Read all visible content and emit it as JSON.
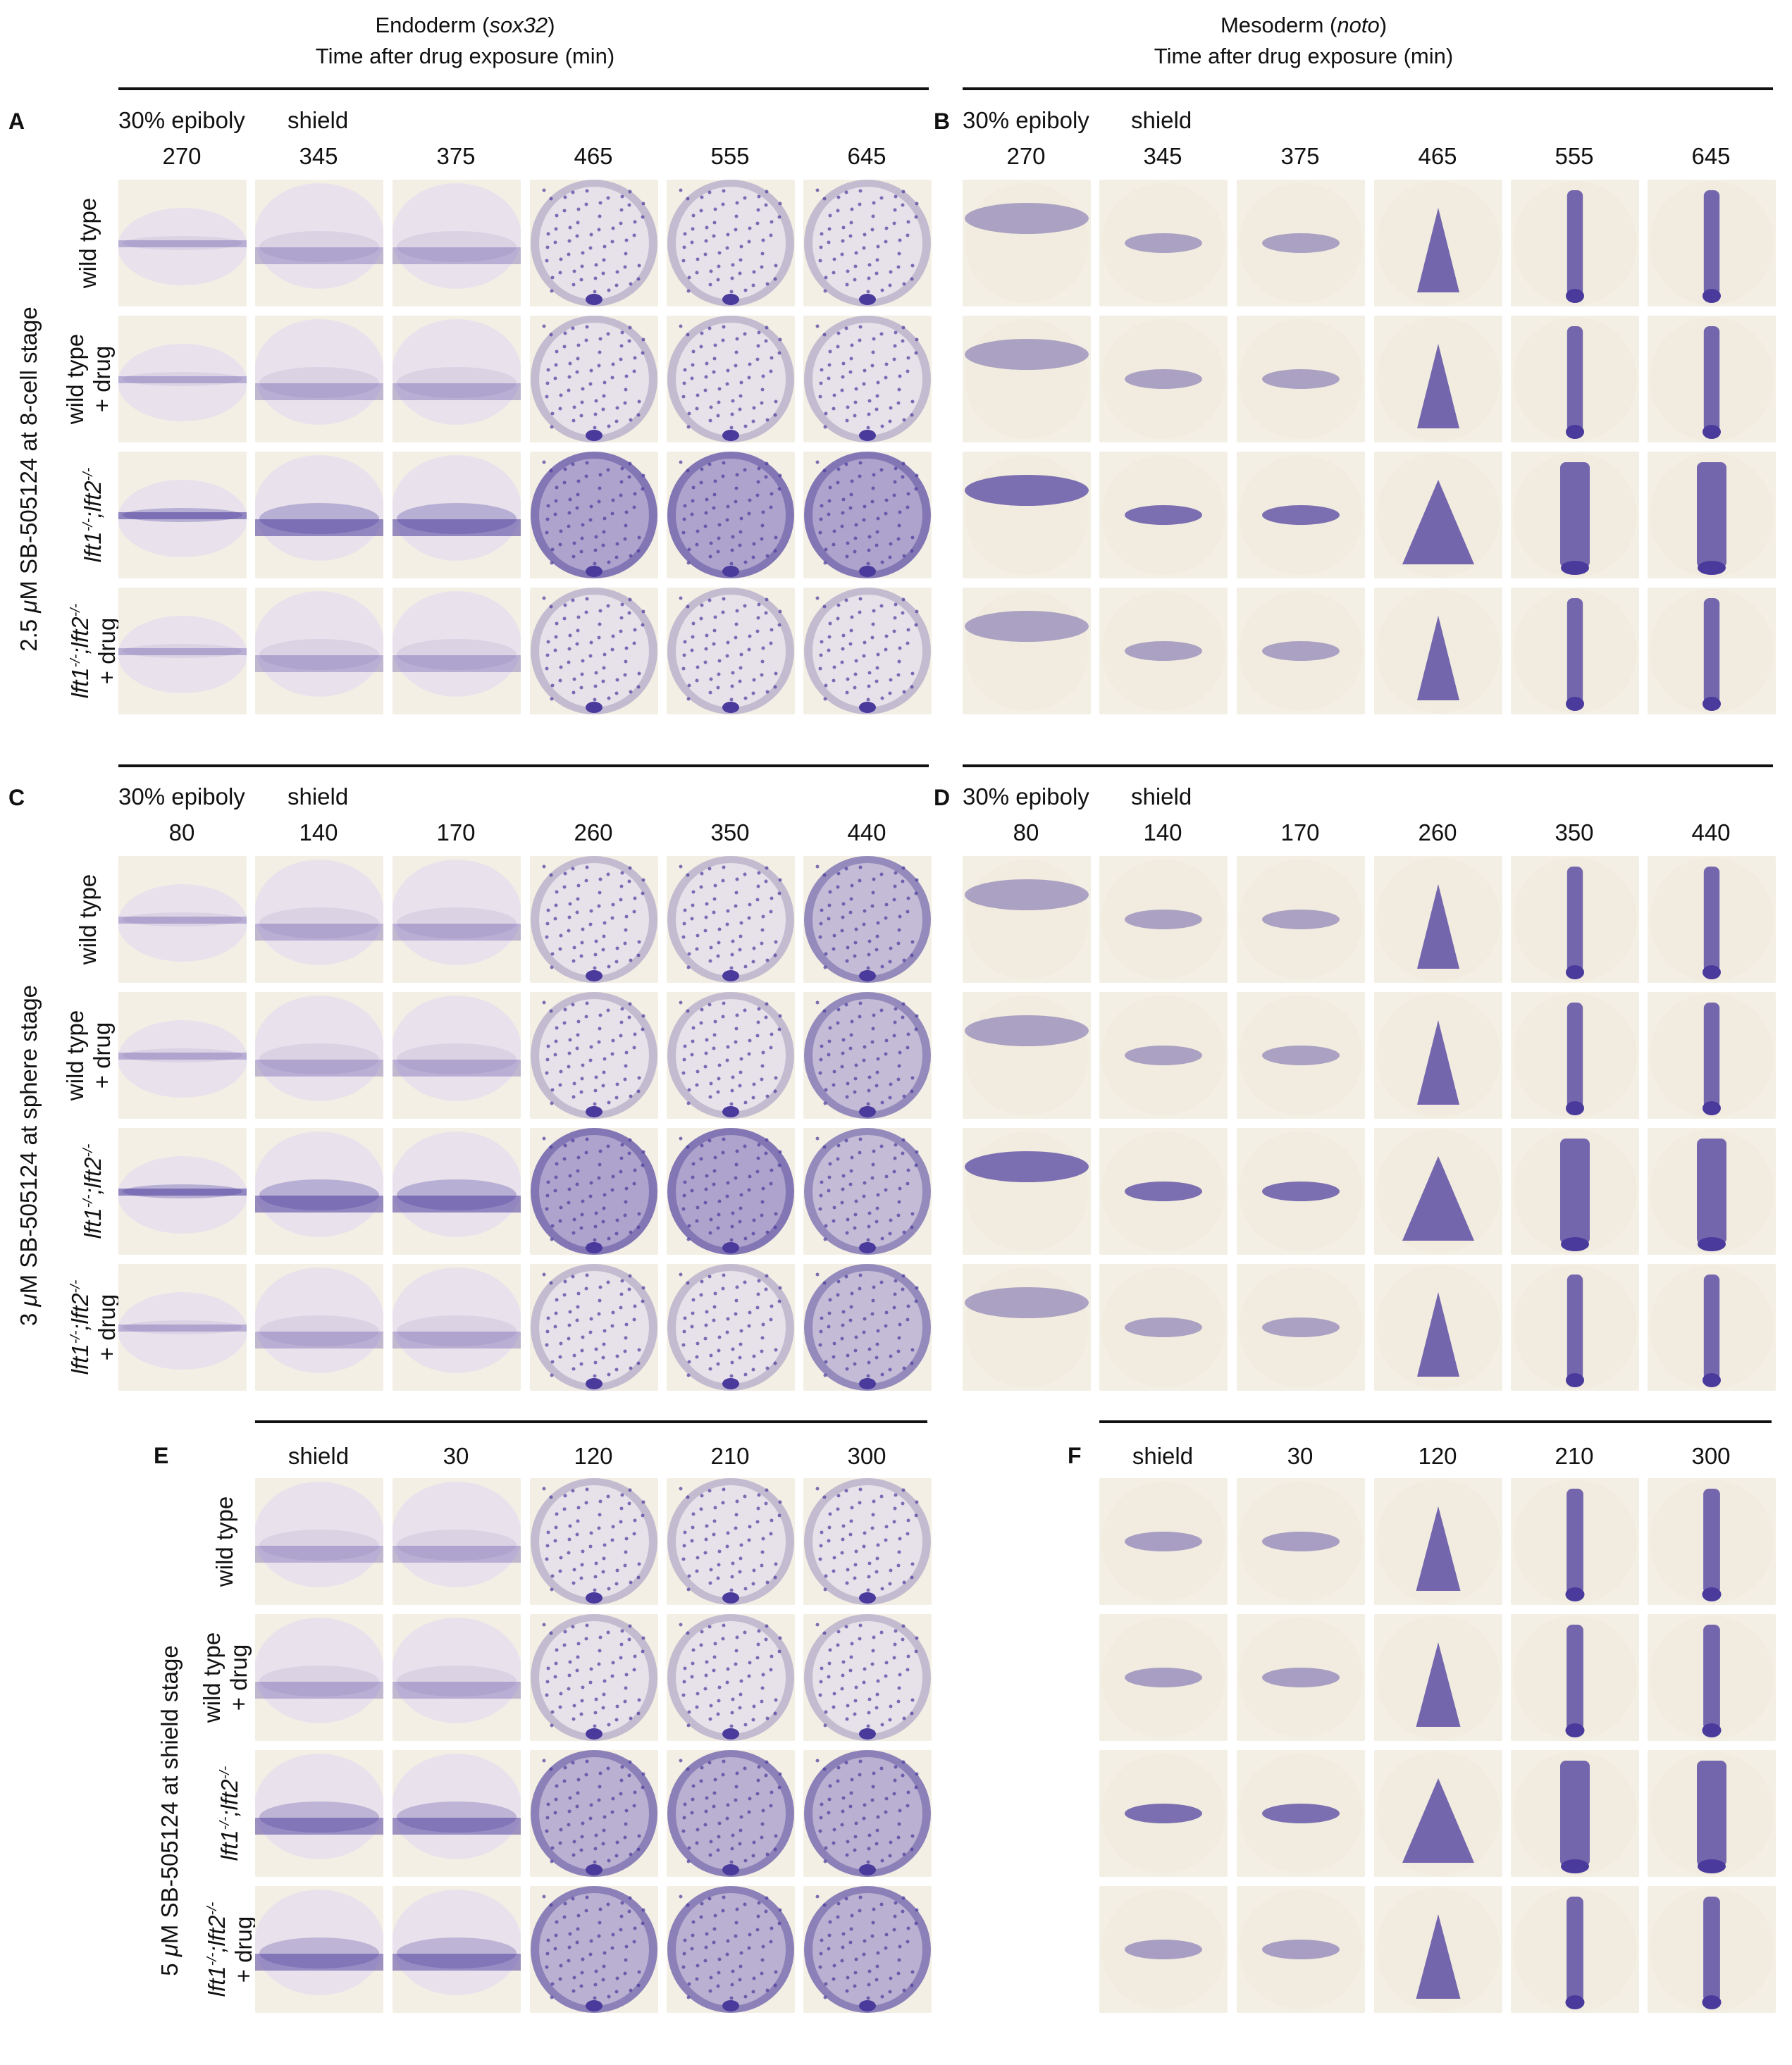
{
  "columns": {
    "endoderm": {
      "line1_pre": "Endoderm (",
      "line1_gene": "sox32",
      "line1_post": ")",
      "line2": "Time after drug exposure (min)"
    },
    "mesoderm": {
      "line1_pre": "Mesoderm (",
      "line1_gene": "noto",
      "line1_post": ")",
      "line2": "Time after drug exposure (min)"
    }
  },
  "panels": {
    "A": {
      "label": "A",
      "stage1": "30% epiboly",
      "stage2": "shield",
      "times": [
        "270",
        "345",
        "375",
        "465",
        "555",
        "645"
      ]
    },
    "B": {
      "label": "B",
      "stage1": "30% epiboly",
      "stage2": "shield",
      "times": [
        "270",
        "345",
        "375",
        "465",
        "555",
        "645"
      ]
    },
    "C": {
      "label": "C",
      "stage1": "30% epiboly",
      "stage2": "shield",
      "times": [
        "80",
        "140",
        "170",
        "260",
        "350",
        "440"
      ]
    },
    "D": {
      "label": "D",
      "stage1": "30% epiboly",
      "stage2": "shield",
      "times": [
        "80",
        "140",
        "170",
        "260",
        "350",
        "440"
      ]
    },
    "E": {
      "label": "E",
      "times": [
        "shield",
        "30",
        "120",
        "210",
        "300"
      ]
    },
    "F": {
      "label": "F",
      "times": [
        "shield",
        "30",
        "120",
        "210",
        "300"
      ]
    }
  },
  "groups": {
    "g1": {
      "pre": "2.5 ",
      "mu": "μ",
      "post": "M SB-505124 at 8-cell stage"
    },
    "g2": {
      "pre": "3 ",
      "mu": "μ",
      "post": "M SB-505124 at sphere stage"
    },
    "g3": {
      "pre": "5 ",
      "mu": "μ",
      "post": "M SB-505124 at shield stage"
    }
  },
  "rows": {
    "wt": "wild type",
    "wtdrug_1": "wild type",
    "wtdrug_2": "+ drug",
    "mut_a": "lft1",
    "mut_sup": "-/-",
    "mut_b": ";lft2",
    "mutdrug_2": "+ drug"
  },
  "colors": {
    "stain": "#4a3a9c",
    "embryo": "#f3eee2",
    "background": "#ffffff"
  }
}
